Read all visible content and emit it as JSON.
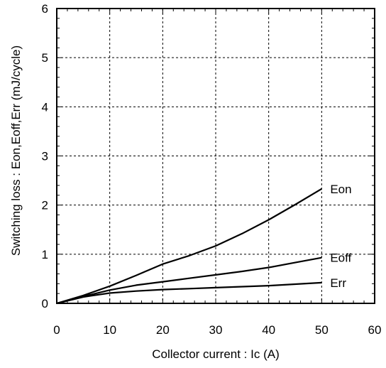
{
  "chart_data": {
    "type": "line",
    "title": "",
    "xlabel": "Collector current : Ic  (A)",
    "ylabel": "Switching loss : Eon,Eoff,Err  (mJ/cycle)",
    "xlim": [
      0,
      60
    ],
    "ylim": [
      0,
      6
    ],
    "xticks": [
      0,
      10,
      20,
      30,
      40,
      50,
      60
    ],
    "yticks": [
      0,
      1,
      2,
      3,
      4,
      5,
      6
    ],
    "grid": true,
    "grid_style": "dashed",
    "legend": "none",
    "series": [
      {
        "name": "Eon",
        "color": "#000000",
        "x": [
          0,
          5,
          10,
          15,
          20,
          25,
          30,
          35,
          40,
          45,
          50
        ],
        "y": [
          0,
          0.16,
          0.35,
          0.57,
          0.8,
          0.97,
          1.17,
          1.42,
          1.7,
          2.01,
          2.33
        ]
      },
      {
        "name": "Eoff",
        "color": "#000000",
        "x": [
          0,
          5,
          10,
          15,
          20,
          25,
          30,
          35,
          40,
          45,
          50
        ],
        "y": [
          0,
          0.14,
          0.27,
          0.37,
          0.44,
          0.51,
          0.58,
          0.65,
          0.73,
          0.83,
          0.93
        ]
      },
      {
        "name": "Err",
        "color": "#000000",
        "x": [
          0,
          5,
          10,
          15,
          20,
          25,
          30,
          35,
          40,
          45,
          50
        ],
        "y": [
          0,
          0.13,
          0.21,
          0.25,
          0.28,
          0.3,
          0.32,
          0.34,
          0.36,
          0.39,
          0.42
        ]
      }
    ]
  }
}
